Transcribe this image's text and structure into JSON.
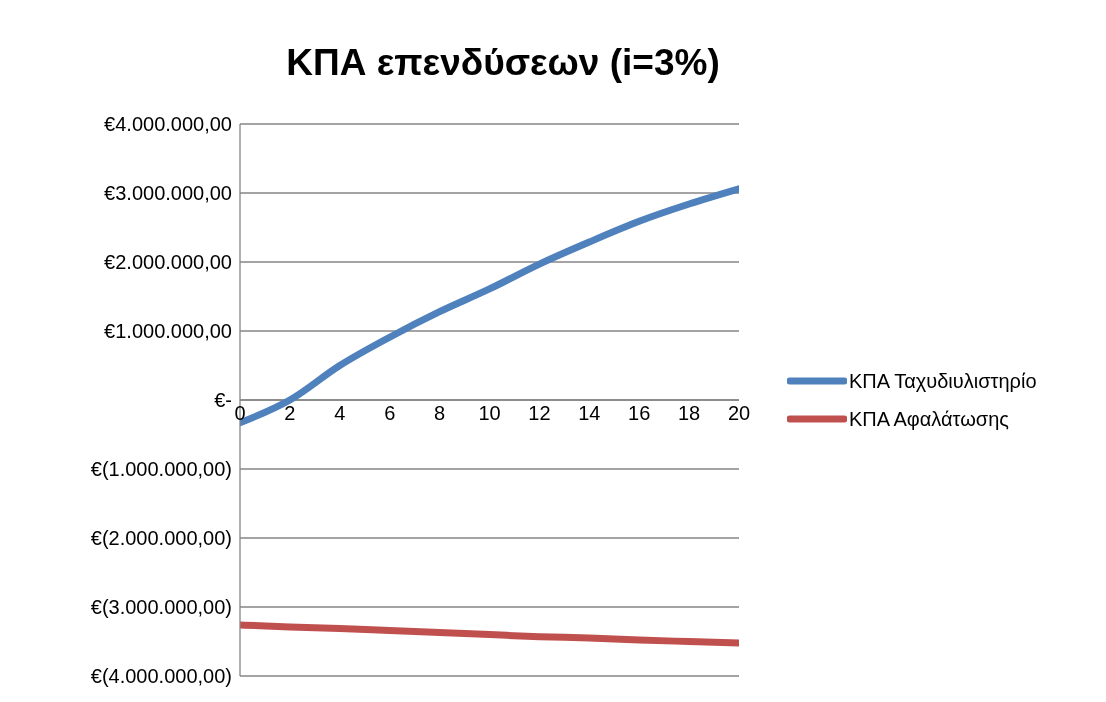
{
  "chart_data": {
    "type": "line",
    "title": "ΚΠΑ επενδύσεων (i=3%)",
    "x": [
      0,
      2,
      4,
      6,
      8,
      10,
      12,
      14,
      16,
      18,
      20
    ],
    "series": [
      {
        "name": "ΚΠΑ Ταχυδιυλιστηρίο",
        "color": "#4f81bd",
        "values": [
          -330000,
          0,
          500000,
          910000,
          1280000,
          1610000,
          1970000,
          2290000,
          2590000,
          2840000,
          3060000
        ]
      },
      {
        "name": "ΚΠΑ Αφαλάτωσης",
        "color": "#c0504d",
        "values": [
          -3260000,
          -3290000,
          -3310000,
          -3340000,
          -3370000,
          -3400000,
          -3430000,
          -3450000,
          -3480000,
          -3500000,
          -3520000
        ]
      }
    ],
    "xlim": [
      0,
      20
    ],
    "xticks": [
      0,
      2,
      4,
      6,
      8,
      10,
      12,
      14,
      16,
      18,
      20
    ],
    "ylim": [
      -4000000,
      4000000
    ],
    "yticks": [
      {
        "value": -4000000,
        "label": "€(4.000.000,00)"
      },
      {
        "value": -3000000,
        "label": "€(3.000.000,00)"
      },
      {
        "value": -2000000,
        "label": "€(2.000.000,00)"
      },
      {
        "value": -1000000,
        "label": "€(1.000.000,00)"
      },
      {
        "value": 0,
        "label": "€-"
      },
      {
        "value": 1000000,
        "label": "€1.000.000,00"
      },
      {
        "value": 2000000,
        "label": "€2.000.000,00"
      },
      {
        "value": 3000000,
        "label": "€3.000.000,00"
      },
      {
        "value": 4000000,
        "label": "€4.000.000,00"
      }
    ],
    "grid": "y",
    "legend": "right",
    "marker": "none",
    "line_style": "solid"
  }
}
